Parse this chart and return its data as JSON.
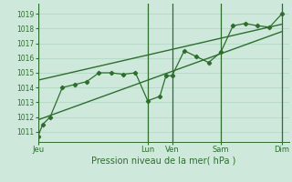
{
  "background_color": "#cfe8dc",
  "grid_color": "#b0d4c0",
  "line_color": "#2d6e2d",
  "marker_color": "#2d6e2d",
  "tick_label_color": "#2d6e2d",
  "axis_label_color": "#2d6e2d",
  "ylabel_ticks": [
    1011,
    1012,
    1013,
    1014,
    1015,
    1016,
    1017,
    1018,
    1019
  ],
  "ylim": [
    1010.3,
    1019.7
  ],
  "xlabel": "Pression niveau de la mer( hPa )",
  "x_day_labels": [
    "Jeu",
    "Lun",
    "Ven",
    "Sam",
    "Dim"
  ],
  "x_day_positions": [
    0.0,
    4.5,
    5.5,
    7.5,
    10.0
  ],
  "x_vlines": [
    0.0,
    4.5,
    5.5,
    7.5,
    10.0
  ],
  "series1_x": [
    0.0,
    0.2,
    0.5,
    1.0,
    1.5,
    2.0,
    2.5,
    3.0,
    3.5,
    4.0,
    4.5,
    5.0,
    5.25,
    5.5,
    6.0,
    6.5,
    7.0,
    7.5,
    8.0,
    8.5,
    9.0,
    9.5,
    10.0
  ],
  "series1_y": [
    1010.7,
    1011.5,
    1012.0,
    1014.0,
    1014.2,
    1014.4,
    1015.0,
    1015.0,
    1014.9,
    1015.0,
    1013.1,
    1013.4,
    1014.8,
    1014.8,
    1016.5,
    1016.1,
    1015.7,
    1016.4,
    1018.2,
    1018.35,
    1018.2,
    1018.1,
    1019.0
  ],
  "series2_x": [
    0.0,
    10.0
  ],
  "series2_y": [
    1014.5,
    1018.3
  ],
  "series3_x": [
    0.0,
    10.0
  ],
  "series3_y": [
    1011.8,
    1017.8
  ],
  "xlim": [
    0.0,
    10.3
  ]
}
